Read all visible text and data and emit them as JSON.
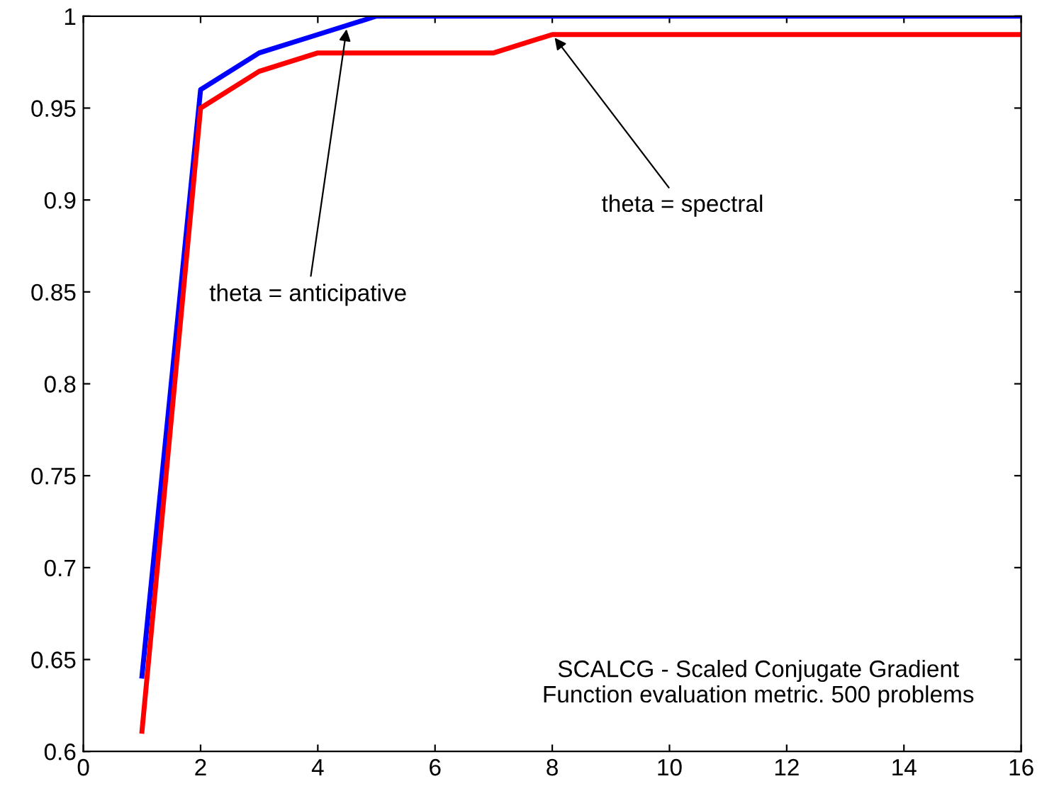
{
  "chart_data": {
    "type": "line",
    "x": [
      1,
      2,
      3,
      4,
      5,
      6,
      7,
      8,
      9,
      10,
      11,
      12,
      13,
      14,
      15,
      16
    ],
    "series": [
      {
        "color": "#0000ff",
        "values": [
          0.641,
          0.96,
          0.98,
          0.99,
          1.0,
          1.0,
          1.0,
          1.0,
          1.0,
          1.0,
          1.0,
          1.0,
          1.0,
          1.0,
          1.0,
          1.0
        ]
      },
      {
        "color": "#ff0000",
        "values": [
          0.611,
          0.95,
          0.97,
          0.98,
          0.98,
          0.98,
          0.98,
          0.99,
          0.99,
          0.99,
          0.99,
          0.99,
          0.99,
          0.99,
          0.99,
          0.99
        ]
      }
    ],
    "xlim": [
      0,
      16
    ],
    "ylim": [
      0.6,
      1
    ],
    "xticks": [
      0,
      2,
      4,
      6,
      8,
      10,
      12,
      14,
      16
    ],
    "yticks": [
      0.6,
      0.65,
      0.7,
      0.75,
      0.8,
      0.85,
      0.9,
      0.95,
      1
    ],
    "grid": false,
    "legend": false,
    "marker": "none",
    "line_style": "solid",
    "annotations": [
      {
        "text": "theta = anticipative",
        "x": 4.5,
        "y": 0.995
      },
      {
        "text": "theta = spectral",
        "x": 8,
        "y": 0.99
      },
      "SCALCG - Scaled Conjugate Gradient\nFunction evaluation metric. 500 problems"
    ]
  }
}
